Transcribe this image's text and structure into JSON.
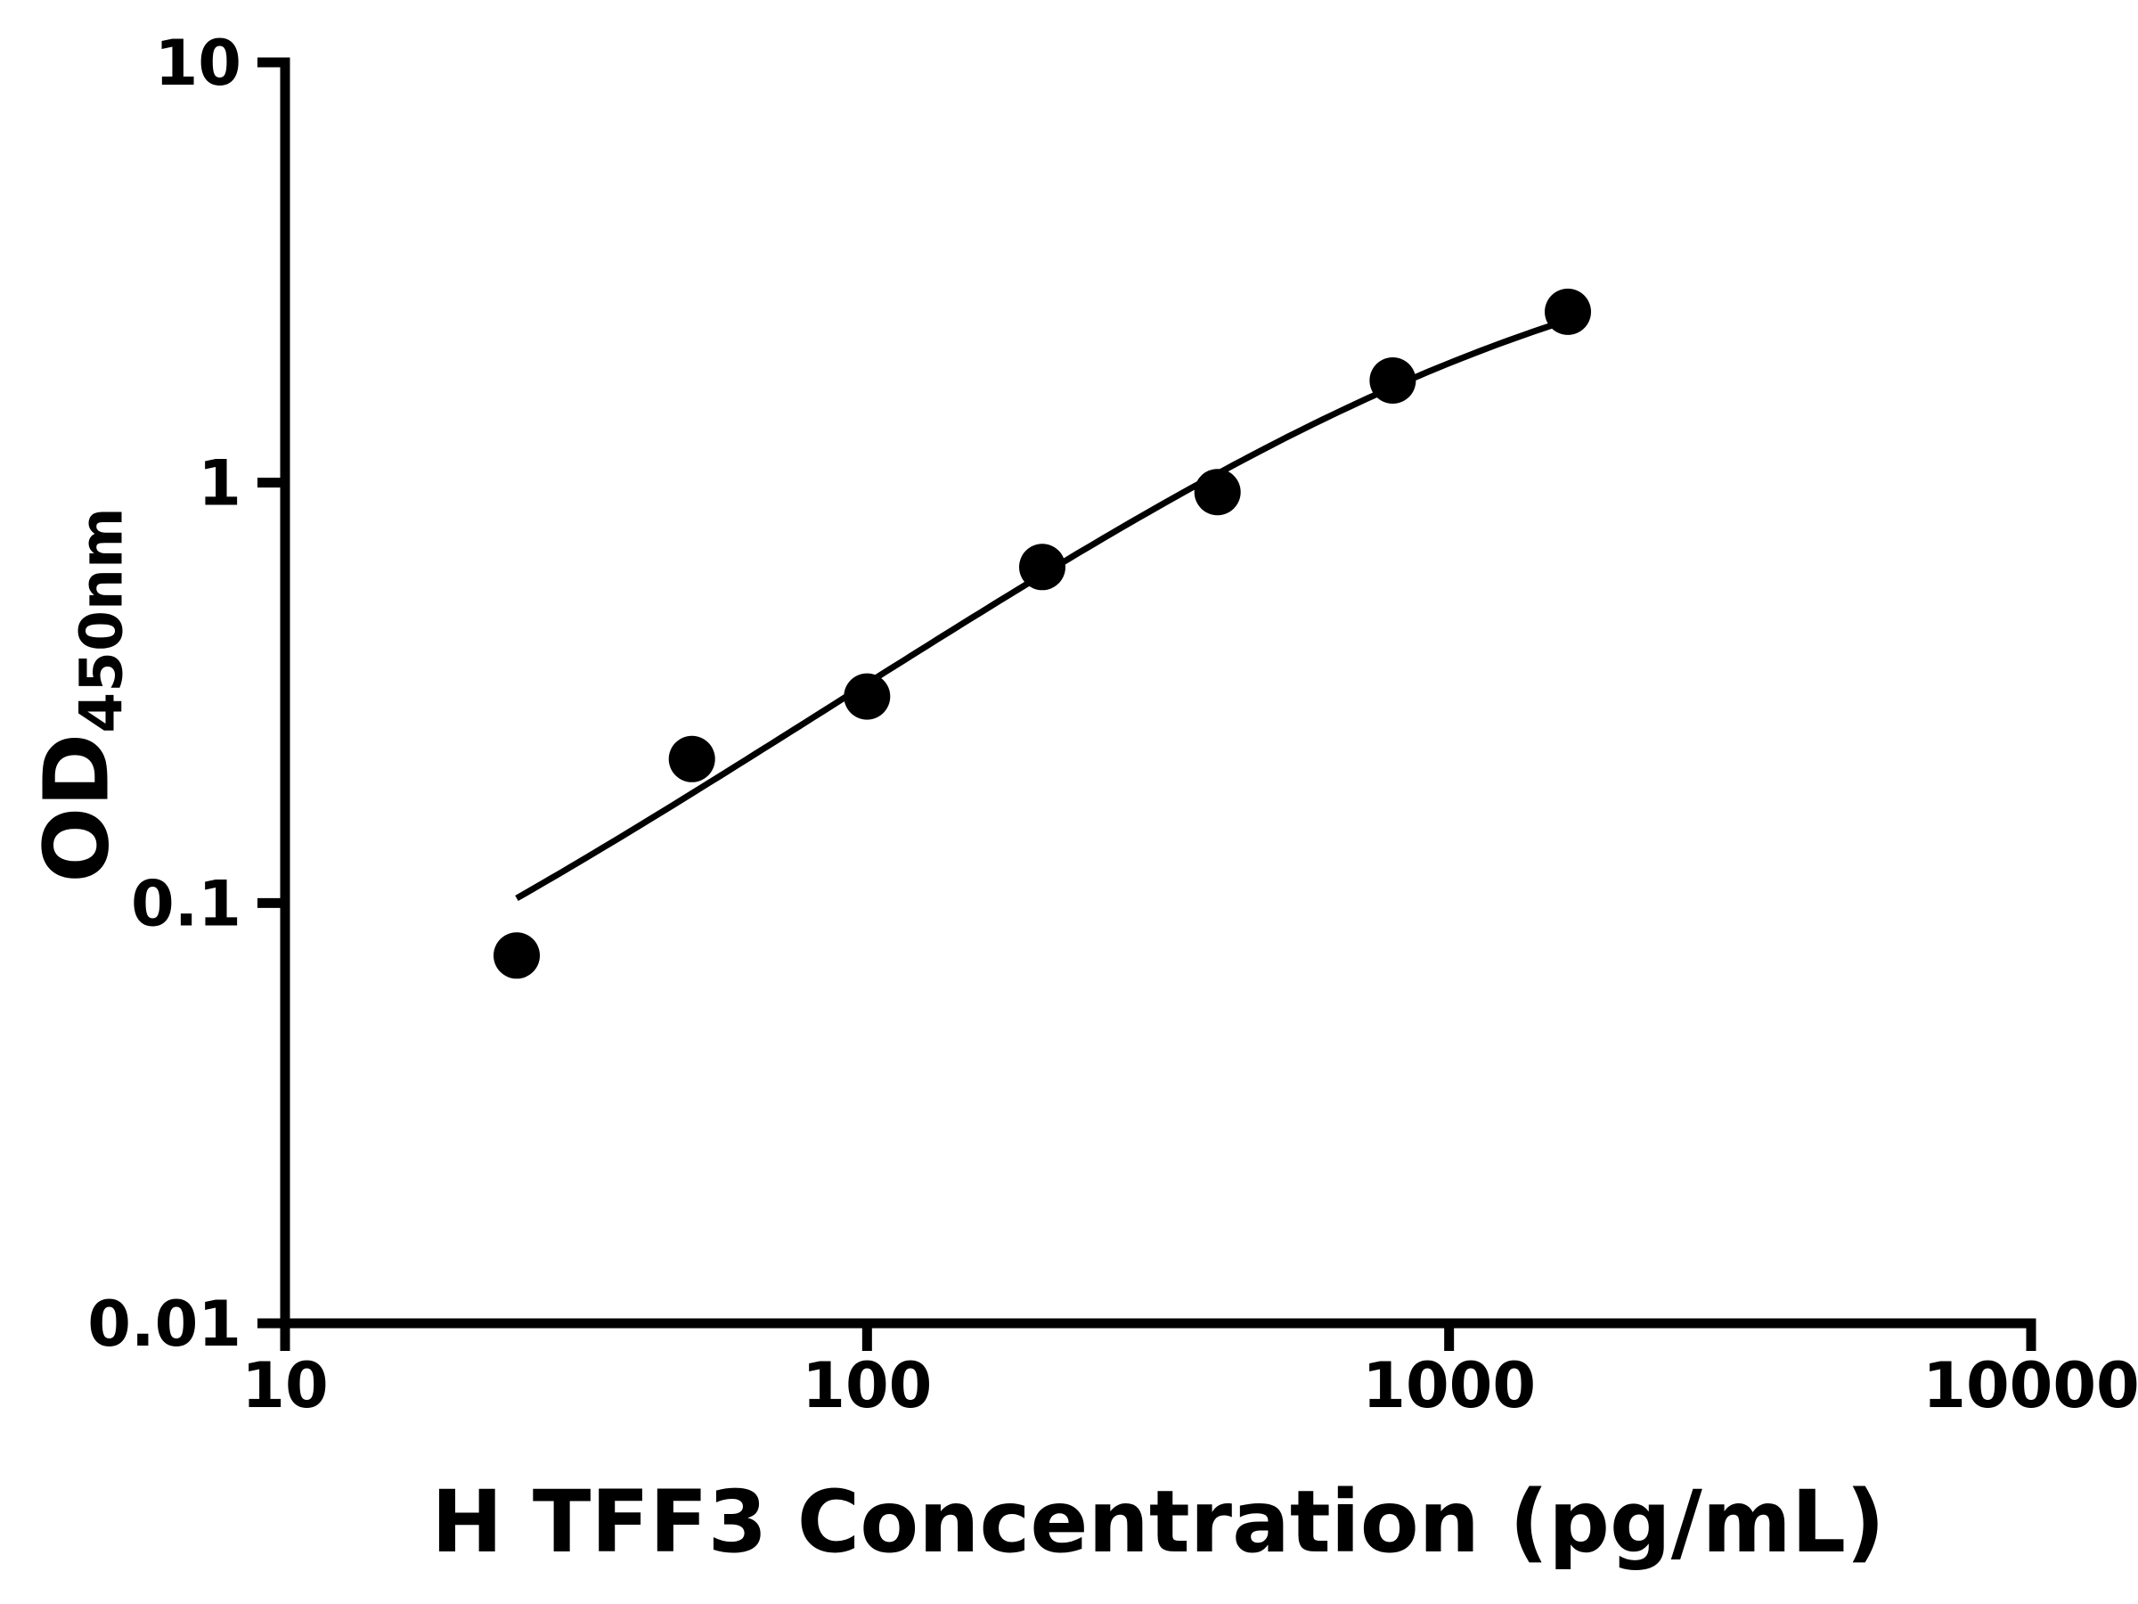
{
  "chart_data": {
    "type": "scatter",
    "title": "",
    "xlabel": "H TFF3 Concentration (pg/mL)",
    "ylabel": "OD450nm",
    "ylabel_main": "OD",
    "ylabel_sub": "450nm",
    "x_scale": "log",
    "y_scale": "log",
    "xlim": [
      10,
      10000
    ],
    "ylim": [
      0.01,
      10
    ],
    "x_ticks": [
      10,
      100,
      1000,
      10000
    ],
    "x_tick_labels": [
      "10",
      "100",
      "1000",
      "10000"
    ],
    "y_ticks": [
      0.01,
      0.1,
      1,
      10
    ],
    "y_tick_labels": [
      "0.01",
      "0.1",
      "1",
      "10"
    ],
    "grid": false,
    "legend": "none",
    "colors": {
      "foreground": "#000000",
      "background": "#ffffff"
    },
    "series": [
      {
        "name": "standard-points",
        "type": "scatter",
        "marker": "filled-circle",
        "color": "#000000",
        "x": [
          25,
          50,
          100,
          200,
          400,
          800,
          1600
        ],
        "y": [
          0.075,
          0.22,
          0.31,
          0.63,
          0.95,
          1.75,
          2.55
        ]
      },
      {
        "name": "fit-curve",
        "type": "line",
        "color": "#000000",
        "fit": {
          "model": "4PL",
          "a": 0.02,
          "b": 1.0,
          "c": 1300,
          "d": 4.4,
          "x_range": [
            25,
            1600
          ]
        }
      }
    ]
  }
}
